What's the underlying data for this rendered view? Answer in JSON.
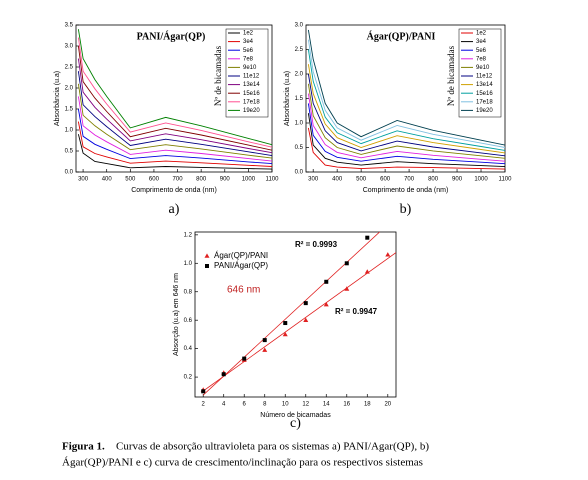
{
  "chart_data": [
    {
      "type": "line",
      "title": "PANI/Ágar(QP)",
      "panel_label": "a)",
      "x_label": "Comprimento de onda (nm)",
      "y_label": "Absorbância (u.a)",
      "legend_title": "Nº de bicamadas",
      "x": [
        280,
        300,
        350,
        400,
        500,
        650,
        800,
        1000,
        1100
      ],
      "xlim": [
        270,
        1100
      ],
      "xticks": [
        300,
        400,
        500,
        600,
        700,
        800,
        900,
        1000,
        1100
      ],
      "ylim": [
        0,
        3.5
      ],
      "yticks": [
        {
          "value": 0,
          "label": "0.0"
        },
        0.5,
        {
          "value": 1,
          "label": "1.0"
        },
        1.5,
        {
          "value": 2,
          "label": "2.0"
        },
        2.5,
        {
          "value": 3,
          "label": "3.0"
        },
        3.5
      ],
      "series": [
        {
          "name": "1e2",
          "color": "#000000",
          "values": [
            0.9,
            0.45,
            0.25,
            0.2,
            0.1,
            0.13,
            0.11,
            0.08,
            0.07
          ]
        },
        {
          "name": "3e4",
          "color": "#e00000",
          "values": [
            1.2,
            0.6,
            0.44,
            0.36,
            0.21,
            0.26,
            0.22,
            0.16,
            0.13
          ]
        },
        {
          "name": "5e6",
          "color": "#0000e0",
          "values": [
            1.5,
            0.85,
            0.66,
            0.54,
            0.32,
            0.39,
            0.33,
            0.24,
            0.2
          ]
        },
        {
          "name": "7e8",
          "color": "#e020e0",
          "values": [
            1.8,
            1.1,
            0.88,
            0.72,
            0.42,
            0.52,
            0.44,
            0.32,
            0.26
          ]
        },
        {
          "name": "9e10",
          "color": "#808000",
          "values": [
            2.1,
            1.35,
            1.1,
            0.9,
            0.53,
            0.65,
            0.55,
            0.4,
            0.33
          ]
        },
        {
          "name": "11e12",
          "color": "#000080",
          "values": [
            2.4,
            1.6,
            1.32,
            1.08,
            0.63,
            0.78,
            0.66,
            0.48,
            0.39
          ]
        },
        {
          "name": "13e14",
          "color": "#800080",
          "values": [
            2.7,
            1.9,
            1.54,
            1.26,
            0.74,
            0.91,
            0.77,
            0.56,
            0.46
          ]
        },
        {
          "name": "15e16",
          "color": "#800000",
          "values": [
            3.0,
            2.15,
            1.76,
            1.44,
            0.84,
            1.04,
            0.88,
            0.64,
            0.52
          ]
        },
        {
          "name": "17e18",
          "color": "#ff5090",
          "values": [
            3.2,
            2.4,
            1.98,
            1.62,
            0.95,
            1.17,
            0.99,
            0.72,
            0.59
          ]
        },
        {
          "name": "19e20",
          "color": "#008000",
          "values": [
            3.4,
            2.7,
            2.2,
            1.8,
            1.05,
            1.3,
            1.1,
            0.8,
            0.65
          ]
        }
      ]
    },
    {
      "type": "line",
      "title": "Ágar(QP)/PANI",
      "panel_label": "b)",
      "x_label": "Comprimento de onda (nm)",
      "y_label": "Absorbância (u.a)",
      "legend_title": "Nº de bicamadas",
      "x": [
        280,
        300,
        350,
        400,
        500,
        650,
        800,
        1000,
        1100
      ],
      "xlim": [
        270,
        1100
      ],
      "xticks": [
        300,
        400,
        500,
        600,
        700,
        800,
        900,
        1000,
        1100
      ],
      "ylim": [
        0,
        3.0
      ],
      "yticks": [
        {
          "value": 0,
          "label": "0.0"
        },
        0.5,
        {
          "value": 1,
          "label": "1.0"
        },
        1.5,
        {
          "value": 2,
          "label": "2.0"
        },
        2.5,
        {
          "value": 3,
          "label": "3.0"
        }
      ],
      "series": [
        {
          "name": "1e2",
          "color": "#e00000",
          "values": [
            0.9,
            0.4,
            0.14,
            0.1,
            0.07,
            0.1,
            0.09,
            0.07,
            0.06
          ]
        },
        {
          "name": "3e4",
          "color": "#000000",
          "values": [
            1.2,
            0.55,
            0.28,
            0.2,
            0.14,
            0.21,
            0.17,
            0.13,
            0.11
          ]
        },
        {
          "name": "5e6",
          "color": "#0000e0",
          "values": [
            1.4,
            0.75,
            0.42,
            0.3,
            0.22,
            0.32,
            0.26,
            0.2,
            0.17
          ]
        },
        {
          "name": "7e8",
          "color": "#e020e0",
          "values": [
            1.6,
            0.95,
            0.56,
            0.4,
            0.29,
            0.42,
            0.34,
            0.26,
            0.22
          ]
        },
        {
          "name": "9e10",
          "color": "#808000",
          "values": [
            1.8,
            1.15,
            0.7,
            0.5,
            0.36,
            0.53,
            0.43,
            0.33,
            0.28
          ]
        },
        {
          "name": "11e12",
          "color": "#000080",
          "values": [
            2.0,
            1.4,
            0.84,
            0.6,
            0.43,
            0.63,
            0.51,
            0.39,
            0.33
          ]
        },
        {
          "name": "13e14",
          "color": "#d0a000",
          "values": [
            2.2,
            1.6,
            0.98,
            0.7,
            0.5,
            0.74,
            0.6,
            0.46,
            0.39
          ]
        },
        {
          "name": "15e16",
          "color": "#00a0a0",
          "values": [
            2.5,
            1.85,
            1.12,
            0.8,
            0.58,
            0.84,
            0.68,
            0.52,
            0.44
          ]
        },
        {
          "name": "17e18",
          "color": "#80c0e0",
          "values": [
            2.7,
            2.05,
            1.26,
            0.9,
            0.65,
            0.95,
            0.77,
            0.59,
            0.5
          ]
        },
        {
          "name": "19e20",
          "color": "#004050",
          "values": [
            2.9,
            2.3,
            1.4,
            1.0,
            0.72,
            1.05,
            0.85,
            0.65,
            0.55
          ]
        }
      ]
    },
    {
      "type": "scatter",
      "panel_label": "c)",
      "x_label": "Número de bicamadas",
      "y_label": "Absorção (u.a) em 646 nm",
      "annotation": "646 nm",
      "trendline": true,
      "x": [
        2,
        4,
        6,
        8,
        10,
        12,
        14,
        16,
        18,
        20
      ],
      "xlim": [
        1.2,
        20.8
      ],
      "xticks": [
        2,
        4,
        6,
        8,
        10,
        12,
        14,
        16,
        18,
        20
      ],
      "ylim": [
        0.06,
        1.22
      ],
      "yticks": [
        0.2,
        0.4,
        0.6,
        0.8,
        {
          "value": 1,
          "label": "1.0"
        },
        1.2
      ],
      "series": [
        {
          "name": "Ágar(QP)/PANI",
          "color": "#e02020",
          "marker": "triangle",
          "fit_label": "R² = 0.9947",
          "values": [
            0.11,
            0.23,
            0.32,
            0.39,
            0.5,
            0.6,
            0.71,
            0.82,
            0.94,
            1.06
          ]
        },
        {
          "name": "PANI/Ágar(QP)",
          "color": "#000000",
          "marker": "square",
          "fit_label": "R² = 0.9993",
          "values": [
            0.1,
            0.22,
            0.33,
            0.46,
            0.58,
            0.72,
            0.87,
            1.0,
            1.18,
            null
          ]
        }
      ]
    }
  ],
  "caption": {
    "label": "Figura 1.",
    "lines": [
      "Curvas de absorção ultravioleta para os sistemas a) PANI/Agar(QP), b)",
      "Ágar(QP)/PANI e c) curva de crescimento/inclinação para os respectivos sistemas"
    ]
  }
}
